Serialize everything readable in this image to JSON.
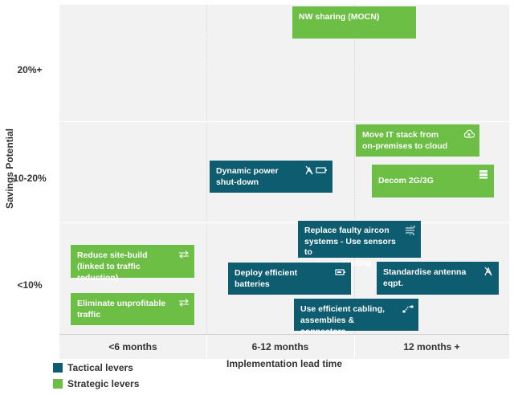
{
  "colors": {
    "tactical": "#0d5c6f",
    "strategic": "#6cbe45",
    "background": "#f2f2f2"
  },
  "chart_data": {
    "type": "matrix",
    "xlabel": "Implementation lead time",
    "ylabel": "Savings Potential",
    "x_categories": [
      "<6 months",
      "6-12 months",
      "12 months +"
    ],
    "y_categories": [
      "20%+",
      "10-20%",
      "<10%"
    ],
    "legend": [
      {
        "key": "tactical",
        "label": "Tactical levers"
      },
      {
        "key": "strategic",
        "label": "Strategic levers"
      }
    ],
    "levers": [
      {
        "label": "NW sharing (MOCN)",
        "type": "strategic",
        "x": "12 months +",
        "y": "20%+",
        "icon": ""
      },
      {
        "label": "Move IT stack from\non-premises to cloud",
        "type": "strategic",
        "x": "12 months +",
        "y": "10-20%",
        "icon": "cloud-upload-icon"
      },
      {
        "label": "Dynamic power\nshut-down",
        "type": "tactical",
        "x": "6-12 months",
        "y": "10-20%",
        "icon": "antenna-battery-icon"
      },
      {
        "label": "Decom 2G/3G",
        "type": "strategic",
        "x": "12 months +",
        "y": "10-20%",
        "icon": "server-icon"
      },
      {
        "label": "Replace faulty aircon\nsystems - Use sensors to\noptimise cooling",
        "type": "tactical",
        "x": "12 months +",
        "y": "<10%",
        "icon": "aircon-icon"
      },
      {
        "label": "Reduce site-build\n(linked to traffic reduction)",
        "type": "strategic",
        "x": "<6 months",
        "y": "<10%",
        "icon": "arrows-exchange-icon"
      },
      {
        "label": "Deploy efficient\nbatteries",
        "type": "tactical",
        "x": "6-12 months",
        "y": "<10%",
        "icon": "battery-icon"
      },
      {
        "label": "Standardise antenna\neqpt.",
        "type": "tactical",
        "x": "12 months +",
        "y": "<10%",
        "icon": "antenna-icon"
      },
      {
        "label": "Eliminate unprofitable\ntraffic",
        "type": "strategic",
        "x": "<6 months",
        "y": "<10%",
        "icon": "arrows-exchange-icon"
      },
      {
        "label": "Use efficient cabling,\nassemblies & connectors",
        "type": "tactical",
        "x": "12 months +",
        "y": "<10%",
        "icon": "connector-icon"
      }
    ]
  }
}
